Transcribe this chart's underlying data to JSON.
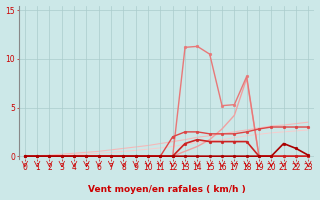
{
  "x": [
    0,
    1,
    2,
    3,
    4,
    5,
    6,
    7,
    8,
    9,
    10,
    11,
    12,
    13,
    14,
    15,
    16,
    17,
    18,
    19,
    20,
    21,
    22,
    23
  ],
  "background_color": "#cce8e8",
  "grid_color": "#aacccc",
  "line_color_dark": "#cc0000",
  "xlabel": "Vent moyen/en rafales ( km/h )",
  "ylim": [
    -0.3,
    15.5
  ],
  "xlim": [
    -0.5,
    23.5
  ],
  "yticks": [
    0,
    5,
    10,
    15
  ],
  "xticks": [
    0,
    1,
    2,
    3,
    4,
    5,
    6,
    7,
    8,
    9,
    10,
    11,
    12,
    13,
    14,
    15,
    16,
    17,
    18,
    19,
    20,
    21,
    22,
    23
  ],
  "series": [
    {
      "y": [
        0,
        0,
        0,
        0,
        0,
        0,
        0,
        0,
        0,
        0,
        0,
        0,
        0,
        0,
        0,
        0,
        0,
        0,
        0,
        0,
        0,
        1.3,
        0.8,
        0.1
      ],
      "color": "#aa0000",
      "lw": 1.2,
      "marker": "o",
      "ms": 2.0,
      "zorder": 6
    },
    {
      "y": [
        0,
        0,
        0,
        0,
        0,
        0,
        0,
        0,
        0,
        0,
        0,
        0,
        0,
        1.3,
        1.7,
        1.5,
        1.5,
        1.5,
        1.5,
        0,
        0,
        0,
        0,
        0
      ],
      "color": "#cc2222",
      "lw": 1.2,
      "marker": "o",
      "ms": 2.0,
      "zorder": 5
    },
    {
      "y": [
        0,
        0,
        0,
        0,
        0,
        0,
        0,
        0,
        0,
        0,
        0,
        0,
        2.0,
        2.5,
        2.5,
        2.3,
        2.3,
        2.3,
        2.5,
        2.8,
        3.0,
        3.0,
        3.0,
        3.0
      ],
      "color": "#dd4444",
      "lw": 1.0,
      "marker": "o",
      "ms": 2.0,
      "zorder": 4
    },
    {
      "y": [
        0,
        0,
        0,
        0,
        0,
        0,
        0,
        0,
        0,
        0,
        0,
        0,
        0,
        11.2,
        11.3,
        10.5,
        5.2,
        5.3,
        8.2,
        0,
        0,
        0,
        0,
        0
      ],
      "color": "#e87878",
      "lw": 1.0,
      "marker": "o",
      "ms": 2.0,
      "zorder": 3
    },
    {
      "y": [
        0,
        0,
        0,
        0,
        0,
        0,
        0,
        0,
        0,
        0,
        0,
        0,
        0,
        0.5,
        1.0,
        1.7,
        2.8,
        4.2,
        8.0,
        0,
        0,
        0,
        0,
        0
      ],
      "color": "#f0a0a0",
      "lw": 1.0,
      "marker": null,
      "ms": 0,
      "zorder": 2
    },
    {
      "y": [
        0,
        0.05,
        0.1,
        0.2,
        0.3,
        0.4,
        0.5,
        0.65,
        0.8,
        0.95,
        1.1,
        1.3,
        1.5,
        1.7,
        1.95,
        2.1,
        2.3,
        2.5,
        2.7,
        2.9,
        3.1,
        3.2,
        3.35,
        3.5
      ],
      "color": "#f5b8b8",
      "lw": 0.8,
      "marker": null,
      "ms": 0,
      "zorder": 1
    },
    {
      "y": [
        0,
        0.02,
        0.05,
        0.1,
        0.15,
        0.22,
        0.3,
        0.38,
        0.5,
        0.6,
        0.72,
        0.85,
        1.0,
        1.2,
        1.4,
        1.55,
        1.7,
        1.9,
        2.1,
        2.25,
        2.4,
        2.5,
        2.6,
        2.7
      ],
      "color": "#f8cccc",
      "lw": 0.7,
      "marker": null,
      "ms": 0,
      "zorder": 1
    }
  ],
  "tick_fontsize": 5.5,
  "axis_fontsize": 6.5
}
